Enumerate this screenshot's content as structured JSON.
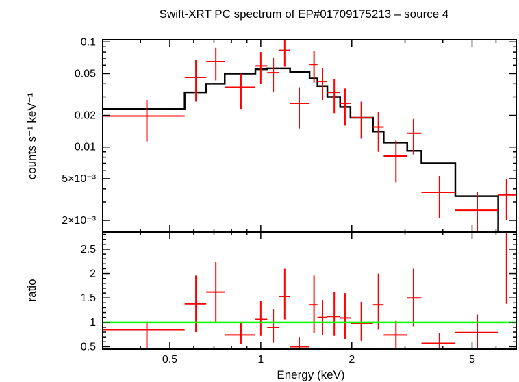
{
  "chart_data": {
    "title": "Swift-XRT PC spectrum of EP#01709175213 – source 4",
    "x_axis": {
      "label": "Energy (keV)",
      "scale": "log",
      "range": [
        0.3,
        7.0
      ],
      "ticks": [
        0.5,
        1,
        2,
        5
      ],
      "tick_labels": [
        "0.5",
        "1",
        "2",
        "5"
      ]
    },
    "panels": [
      {
        "type": "step-line-with-errorbars",
        "y_label": "counts s⁻¹ keV⁻¹",
        "y_scale": "log",
        "y_range": [
          0.00155,
          0.105
        ],
        "y_ticks": [
          {
            "value": 0.1,
            "label": "0.1"
          },
          {
            "value": 0.05,
            "label": "0.05"
          },
          {
            "value": 0.02,
            "label": "0.02"
          },
          {
            "value": 0.01,
            "label": "0.01"
          },
          {
            "value": 0.005,
            "label": "5×10⁻³"
          },
          {
            "value": 0.002,
            "label": "2×10⁻³"
          }
        ],
        "data_color": "#ff0000",
        "model_color": "#000000",
        "data": [
          {
            "x": 0.42,
            "x_lo": 0.3,
            "x_hi": 0.56,
            "y": 0.0197,
            "y_lo": 0.0113,
            "y_hi": 0.028
          },
          {
            "x": 0.61,
            "x_lo": 0.56,
            "x_hi": 0.66,
            "y": 0.046,
            "y_lo": 0.027,
            "y_hi": 0.068
          },
          {
            "x": 0.71,
            "x_lo": 0.66,
            "x_hi": 0.76,
            "y": 0.065,
            "y_lo": 0.043,
            "y_hi": 0.088
          },
          {
            "x": 0.86,
            "x_lo": 0.76,
            "x_hi": 0.96,
            "y": 0.037,
            "y_lo": 0.023,
            "y_hi": 0.05
          },
          {
            "x": 1.0,
            "x_lo": 0.96,
            "x_hi": 1.05,
            "y": 0.059,
            "y_lo": 0.04,
            "y_hi": 0.08
          },
          {
            "x": 1.1,
            "x_lo": 1.05,
            "x_hi": 1.15,
            "y": 0.051,
            "y_lo": 0.033,
            "y_hi": 0.071
          },
          {
            "x": 1.2,
            "x_lo": 1.15,
            "x_hi": 1.25,
            "y": 0.083,
            "y_lo": 0.058,
            "y_hi": 0.105
          },
          {
            "x": 1.34,
            "x_lo": 1.25,
            "x_hi": 1.45,
            "y": 0.026,
            "y_lo": 0.015,
            "y_hi": 0.037
          },
          {
            "x": 1.5,
            "x_lo": 1.45,
            "x_hi": 1.54,
            "y": 0.061,
            "y_lo": 0.041,
            "y_hi": 0.082
          },
          {
            "x": 1.6,
            "x_lo": 1.54,
            "x_hi": 1.66,
            "y": 0.042,
            "y_lo": 0.028,
            "y_hi": 0.056
          },
          {
            "x": 1.75,
            "x_lo": 1.66,
            "x_hi": 1.83,
            "y": 0.033,
            "y_lo": 0.021,
            "y_hi": 0.044
          },
          {
            "x": 1.9,
            "x_lo": 1.83,
            "x_hi": 1.98,
            "y": 0.026,
            "y_lo": 0.016,
            "y_hi": 0.036
          },
          {
            "x": 2.15,
            "x_lo": 1.98,
            "x_hi": 2.35,
            "y": 0.019,
            "y_lo": 0.012,
            "y_hi": 0.027
          },
          {
            "x": 2.45,
            "x_lo": 2.35,
            "x_hi": 2.55,
            "y": 0.0155,
            "y_lo": 0.009,
            "y_hi": 0.0215
          },
          {
            "x": 2.8,
            "x_lo": 2.55,
            "x_hi": 3.05,
            "y": 0.0082,
            "y_lo": 0.0046,
            "y_hi": 0.0115
          },
          {
            "x": 3.2,
            "x_lo": 3.05,
            "x_hi": 3.4,
            "y": 0.0135,
            "y_lo": 0.0085,
            "y_hi": 0.0185
          },
          {
            "x": 3.9,
            "x_lo": 3.4,
            "x_hi": 4.4,
            "y": 0.0037,
            "y_lo": 0.0021,
            "y_hi": 0.0053
          },
          {
            "x": 5.2,
            "x_lo": 4.4,
            "x_hi": 6.1,
            "y": 0.0025,
            "y_lo": 0.00155,
            "y_hi": 0.0037
          },
          {
            "x": 6.5,
            "x_lo": 6.1,
            "x_hi": 7.0,
            "y": 0.0035,
            "y_lo": 0.002,
            "y_hi": 0.005
          }
        ],
        "model_steps": [
          {
            "x_lo": 0.3,
            "x_hi": 0.56,
            "y": 0.023
          },
          {
            "x_lo": 0.56,
            "x_hi": 0.66,
            "y": 0.033
          },
          {
            "x_lo": 0.66,
            "x_hi": 0.76,
            "y": 0.04
          },
          {
            "x_lo": 0.76,
            "x_hi": 0.96,
            "y": 0.05
          },
          {
            "x_lo": 0.96,
            "x_hi": 1.05,
            "y": 0.055
          },
          {
            "x_lo": 1.05,
            "x_hi": 1.25,
            "y": 0.056
          },
          {
            "x_lo": 1.25,
            "x_hi": 1.45,
            "y": 0.052
          },
          {
            "x_lo": 1.45,
            "x_hi": 1.54,
            "y": 0.045
          },
          {
            "x_lo": 1.54,
            "x_hi": 1.66,
            "y": 0.038
          },
          {
            "x_lo": 1.66,
            "x_hi": 1.83,
            "y": 0.03
          },
          {
            "x_lo": 1.83,
            "x_hi": 1.98,
            "y": 0.024
          },
          {
            "x_lo": 1.98,
            "x_hi": 2.35,
            "y": 0.019
          },
          {
            "x_lo": 2.35,
            "x_hi": 2.55,
            "y": 0.014
          },
          {
            "x_lo": 2.55,
            "x_hi": 3.05,
            "y": 0.011
          },
          {
            "x_lo": 3.05,
            "x_hi": 3.4,
            "y": 0.0092
          },
          {
            "x_lo": 3.4,
            "x_hi": 4.4,
            "y": 0.007
          },
          {
            "x_lo": 4.4,
            "x_hi": 6.1,
            "y": 0.0034
          },
          {
            "x_lo": 6.1,
            "x_hi": 7.0,
            "y": 0.0015
          }
        ]
      },
      {
        "type": "ratio-with-errorbars",
        "y_label": "ratio",
        "y_scale": "linear",
        "y_range": [
          0.45,
          2.85
        ],
        "y_ticks": [
          {
            "value": 0.5,
            "label": "0.5"
          },
          {
            "value": 1,
            "label": "1"
          },
          {
            "value": 1.5,
            "label": "1.5"
          },
          {
            "value": 2,
            "label": "2"
          },
          {
            "value": 2.5,
            "label": "2.5"
          }
        ],
        "reference_line": {
          "y": 1,
          "color": "#00ff00"
        },
        "data_color": "#ff0000",
        "data": [
          {
            "x": 0.42,
            "x_lo": 0.3,
            "x_hi": 0.56,
            "y": 0.85,
            "y_lo": 0.45,
            "y_hi": 1.0
          },
          {
            "x": 0.61,
            "x_lo": 0.56,
            "x_hi": 0.66,
            "y": 1.38,
            "y_lo": 0.8,
            "y_hi": 1.96
          },
          {
            "x": 0.71,
            "x_lo": 0.66,
            "x_hi": 0.76,
            "y": 1.62,
            "y_lo": 1.0,
            "y_hi": 2.24
          },
          {
            "x": 0.86,
            "x_lo": 0.76,
            "x_hi": 0.96,
            "y": 0.74,
            "y_lo": 0.55,
            "y_hi": 1.0
          },
          {
            "x": 1.0,
            "x_lo": 0.96,
            "x_hi": 1.05,
            "y": 1.06,
            "y_lo": 0.72,
            "y_hi": 1.44
          },
          {
            "x": 1.1,
            "x_lo": 1.05,
            "x_hi": 1.15,
            "y": 0.9,
            "y_lo": 0.58,
            "y_hi": 1.27
          },
          {
            "x": 1.2,
            "x_lo": 1.15,
            "x_hi": 1.25,
            "y": 1.53,
            "y_lo": 1.06,
            "y_hi": 2.1
          },
          {
            "x": 1.34,
            "x_lo": 1.25,
            "x_hi": 1.45,
            "y": 0.5,
            "y_lo": 0.45,
            "y_hi": 0.7
          },
          {
            "x": 1.5,
            "x_lo": 1.45,
            "x_hi": 1.54,
            "y": 1.36,
            "y_lo": 0.78,
            "y_hi": 1.96
          },
          {
            "x": 1.6,
            "x_lo": 1.54,
            "x_hi": 1.66,
            "y": 1.1,
            "y_lo": 0.74,
            "y_hi": 1.46
          },
          {
            "x": 1.75,
            "x_lo": 1.66,
            "x_hi": 1.83,
            "y": 1.12,
            "y_lo": 0.72,
            "y_hi": 1.62
          },
          {
            "x": 1.9,
            "x_lo": 1.83,
            "x_hi": 1.98,
            "y": 1.09,
            "y_lo": 0.66,
            "y_hi": 1.6
          },
          {
            "x": 2.15,
            "x_lo": 1.98,
            "x_hi": 2.35,
            "y": 0.98,
            "y_lo": 0.62,
            "y_hi": 1.42
          },
          {
            "x": 2.45,
            "x_lo": 2.35,
            "x_hi": 2.55,
            "y": 1.36,
            "y_lo": 0.85,
            "y_hi": 2.0
          },
          {
            "x": 2.8,
            "x_lo": 2.55,
            "x_hi": 3.05,
            "y": 0.74,
            "y_lo": 0.48,
            "y_hi": 1.03
          },
          {
            "x": 3.2,
            "x_lo": 3.05,
            "x_hi": 3.4,
            "y": 1.5,
            "y_lo": 0.92,
            "y_hi": 2.1
          },
          {
            "x": 3.9,
            "x_lo": 3.4,
            "x_hi": 4.4,
            "y": 0.57,
            "y_lo": 0.45,
            "y_hi": 0.78
          },
          {
            "x": 5.2,
            "x_lo": 4.4,
            "x_hi": 6.1,
            "y": 0.79,
            "y_lo": 0.45,
            "y_hi": 1.16
          },
          {
            "x": 6.5,
            "x_lo": 6.1,
            "x_hi": 7.0,
            "y": 2.85,
            "y_lo": 1.38,
            "y_hi": 2.85
          }
        ]
      }
    ]
  }
}
